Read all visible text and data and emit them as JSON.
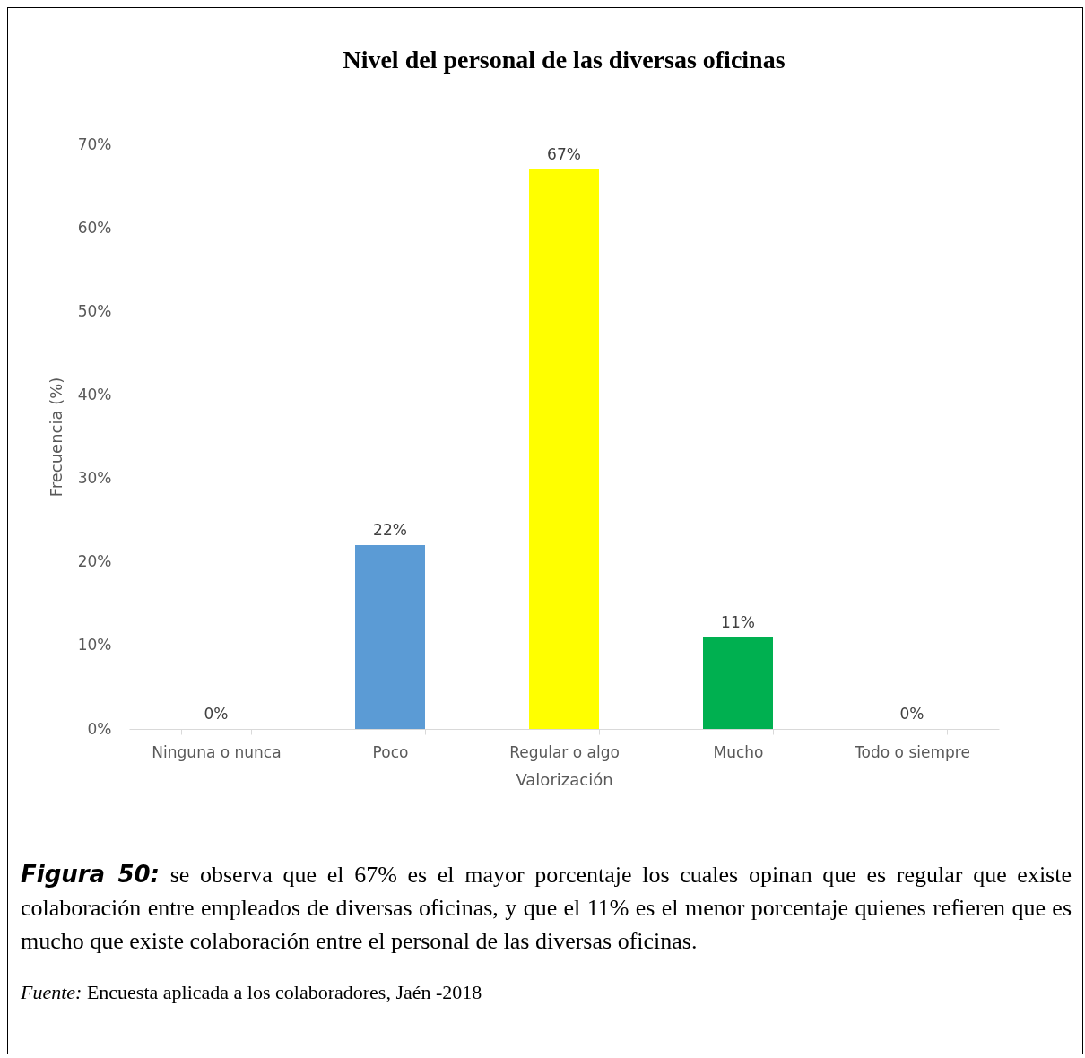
{
  "chart_data": {
    "type": "bar",
    "title": "Nivel del personal de las diversas oficinas",
    "xlabel": "Valorización",
    "ylabel": "Frecuencia (%)",
    "categories": [
      "Ninguna o nunca",
      "Poco",
      "Regular o algo",
      "Mucho",
      "Todo o siempre"
    ],
    "values": [
      0,
      22,
      67,
      11,
      0
    ],
    "colors": [
      "#a5a5a5",
      "#5b9bd5",
      "#ffff00",
      "#00b050",
      "#a5a5a5"
    ],
    "value_labels": [
      "0%",
      "22%",
      "67%",
      "11%",
      "0%"
    ],
    "ylim": [
      0,
      70
    ],
    "yticks": [
      {
        "value": 0,
        "label": "0%"
      },
      {
        "value": 10,
        "label": "10%"
      },
      {
        "value": 20,
        "label": "20%"
      },
      {
        "value": 30,
        "label": "30%"
      },
      {
        "value": 40,
        "label": "40%"
      },
      {
        "value": 50,
        "label": "50%"
      },
      {
        "value": 60,
        "label": "60%"
      },
      {
        "value": 70,
        "label": "70%"
      }
    ],
    "grid": false,
    "legend": false,
    "annotations": [
      "Figura 50: se observa que el 67% es el mayor porcentaje los cuales opinan que es regular que existe colaboración entre empleados de diversas oficinas, y que el 11% es el menor porcentaje quienes refieren que es mucho que existe colaboración entre el personal de las diversas oficinas.",
      "Fuente: Encuesta aplicada a los colaboradores, Jaén -2018"
    ]
  }
}
